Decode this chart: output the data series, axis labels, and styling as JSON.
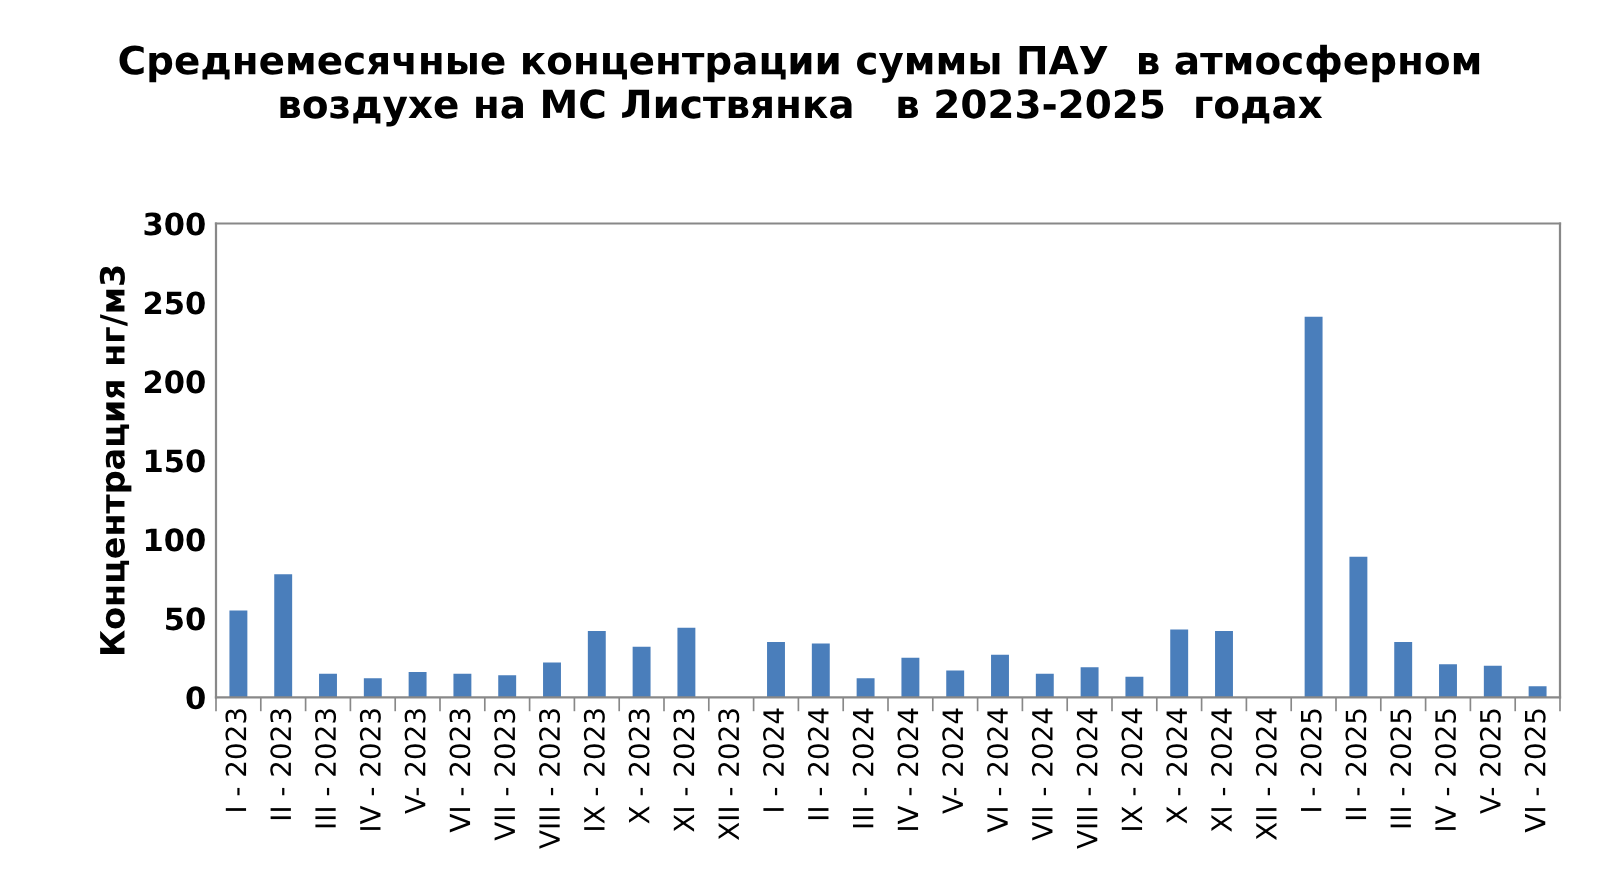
{
  "chart_data": {
    "type": "bar",
    "title": "Среднемесячные концентрации суммы ПАУ  в атмосферном\nвоздухе на МС Листвянка   в 2023-2025  годах",
    "ylabel": "Концентрация нг/м3",
    "categories": [
      "I - 2023",
      "II - 2023",
      "III - 2023",
      "IV - 2023",
      "V- 2023",
      "VI - 2023",
      "VII - 2023",
      "VIII - 2023",
      "IX - 2023",
      "X - 2023",
      "XI - 2023",
      "XII - 2023",
      "I - 2024",
      "II - 2024",
      "III - 2024",
      "IV - 2024",
      "V- 2024",
      "VI - 2024",
      "VII - 2024",
      "VIII - 2024",
      "IX - 2024",
      "X - 2024",
      "XI - 2024",
      "XII - 2024",
      "I - 2025",
      "II - 2025",
      "III - 2025",
      "IV - 2025",
      "V- 2025",
      "VI - 2025"
    ],
    "values": [
      55,
      78,
      15,
      12,
      16,
      15,
      14,
      22,
      42,
      32,
      44,
      null,
      35,
      34,
      12,
      25,
      17,
      27,
      15,
      19,
      13,
      43,
      42,
      null,
      241,
      89,
      35,
      21,
      20,
      7
    ],
    "color": "#4a7ebb",
    "ylim": [
      0,
      300
    ],
    "yticks": [
      0,
      50,
      100,
      150,
      200,
      250,
      300
    ],
    "grid": false,
    "legend": false
  }
}
